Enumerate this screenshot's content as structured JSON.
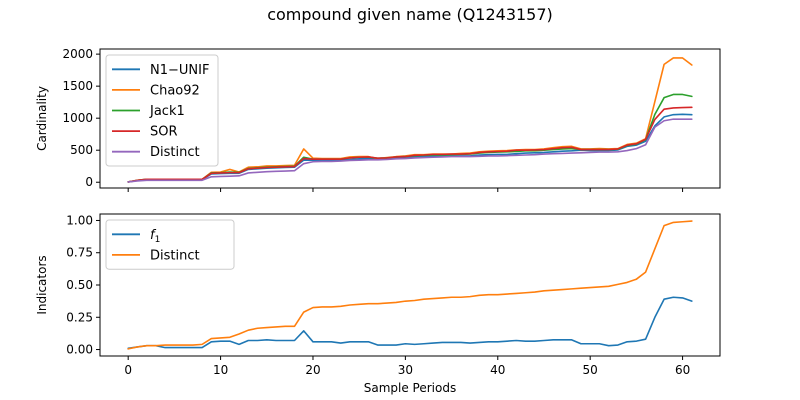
{
  "figure": {
    "title": "compound given name (Q1243157)"
  },
  "chart_data": [
    {
      "type": "line",
      "ylabel": "Cardinality",
      "xlabel": "",
      "xlim": [
        -3.05,
        64.05
      ],
      "ylim": [
        -90,
        2080
      ],
      "xticks": [
        0,
        10,
        20,
        30,
        40,
        50,
        60
      ],
      "xtick_labels_visible": false,
      "yticks": [
        0,
        500,
        1000,
        1500,
        2000
      ],
      "ytick_labels": [
        "0",
        "500",
        "1000",
        "1500",
        "2000"
      ],
      "grid": false,
      "legend_position": "upper-left",
      "x": [
        0,
        1,
        2,
        3,
        4,
        5,
        6,
        7,
        8,
        9,
        10,
        11,
        12,
        13,
        14,
        15,
        16,
        17,
        18,
        19,
        20,
        21,
        22,
        23,
        24,
        25,
        26,
        27,
        28,
        29,
        30,
        31,
        32,
        33,
        34,
        35,
        36,
        37,
        38,
        39,
        40,
        41,
        42,
        43,
        44,
        45,
        46,
        47,
        48,
        49,
        50,
        51,
        52,
        53,
        54,
        55,
        56,
        57,
        58,
        59,
        60,
        61
      ],
      "series": [
        {
          "name": "N1−UNIF",
          "color": "#1f77b4",
          "values": [
            5,
            25,
            40,
            40,
            40,
            40,
            40,
            40,
            40,
            130,
            135,
            140,
            140,
            200,
            210,
            220,
            225,
            230,
            235,
            345,
            345,
            345,
            345,
            345,
            355,
            365,
            365,
            365,
            370,
            380,
            390,
            395,
            405,
            405,
            410,
            410,
            410,
            410,
            425,
            430,
            435,
            435,
            445,
            455,
            460,
            465,
            475,
            485,
            490,
            500,
            495,
            495,
            495,
            505,
            560,
            580,
            640,
            880,
            1020,
            1055,
            1060,
            1055
          ]
        },
        {
          "name": "Chao92",
          "color": "#ff7f0e",
          "values": [
            5,
            30,
            45,
            45,
            45,
            45,
            45,
            45,
            45,
            155,
            160,
            200,
            160,
            235,
            240,
            255,
            255,
            260,
            265,
            520,
            375,
            370,
            370,
            370,
            395,
            400,
            400,
            370,
            385,
            400,
            410,
            430,
            430,
            440,
            440,
            440,
            450,
            455,
            475,
            485,
            490,
            495,
            505,
            510,
            510,
            520,
            540,
            555,
            560,
            520,
            520,
            525,
            520,
            525,
            590,
            610,
            680,
            1260,
            1840,
            1940,
            1940,
            1830
          ]
        },
        {
          "name": "Jack1",
          "color": "#2ca02c",
          "values": [
            5,
            30,
            45,
            45,
            45,
            45,
            45,
            45,
            45,
            145,
            150,
            160,
            155,
            215,
            225,
            235,
            240,
            245,
            250,
            390,
            360,
            360,
            360,
            360,
            380,
            390,
            390,
            375,
            380,
            395,
            400,
            415,
            420,
            425,
            425,
            430,
            435,
            440,
            455,
            465,
            470,
            475,
            480,
            490,
            490,
            500,
            510,
            520,
            525,
            510,
            510,
            510,
            510,
            515,
            575,
            595,
            665,
            1060,
            1320,
            1370,
            1370,
            1340
          ]
        },
        {
          "name": "SOR",
          "color": "#d62728",
          "values": [
            5,
            30,
            45,
            45,
            45,
            45,
            45,
            45,
            45,
            140,
            145,
            150,
            150,
            210,
            220,
            230,
            235,
            240,
            245,
            370,
            360,
            360,
            360,
            360,
            380,
            390,
            395,
            375,
            380,
            395,
            400,
            420,
            425,
            435,
            435,
            440,
            440,
            445,
            465,
            475,
            480,
            485,
            500,
            500,
            505,
            510,
            525,
            540,
            545,
            510,
            510,
            510,
            510,
            520,
            580,
            600,
            670,
            980,
            1140,
            1160,
            1165,
            1170
          ]
        },
        {
          "name": "Distinct",
          "color": "#9467bd",
          "values": [
            5,
            20,
            30,
            30,
            30,
            30,
            30,
            30,
            30,
            85,
            90,
            95,
            100,
            145,
            155,
            165,
            170,
            175,
            180,
            290,
            320,
            325,
            325,
            330,
            340,
            345,
            350,
            350,
            355,
            365,
            370,
            380,
            385,
            390,
            395,
            400,
            400,
            400,
            405,
            410,
            410,
            415,
            420,
            425,
            430,
            440,
            445,
            450,
            455,
            460,
            465,
            470,
            470,
            475,
            495,
            525,
            585,
            860,
            960,
            985,
            985,
            985
          ]
        }
      ]
    },
    {
      "type": "line",
      "ylabel": "Indicators",
      "xlabel": "Sample Periods",
      "xlim": [
        -3.05,
        64.05
      ],
      "ylim": [
        -0.05,
        1.05
      ],
      "xticks": [
        0,
        10,
        20,
        30,
        40,
        50,
        60
      ],
      "xtick_labels": [
        "0",
        "10",
        "20",
        "30",
        "40",
        "50",
        "60"
      ],
      "yticks": [
        0.0,
        0.25,
        0.5,
        0.75,
        1.0
      ],
      "ytick_labels": [
        "0.00",
        "0.25",
        "0.50",
        "0.75",
        "1.00"
      ],
      "grid": false,
      "legend_position": "upper-left",
      "x": [
        0,
        1,
        2,
        3,
        4,
        5,
        6,
        7,
        8,
        9,
        10,
        11,
        12,
        13,
        14,
        15,
        16,
        17,
        18,
        19,
        20,
        21,
        22,
        23,
        24,
        25,
        26,
        27,
        28,
        29,
        30,
        31,
        32,
        33,
        34,
        35,
        36,
        37,
        38,
        39,
        40,
        41,
        42,
        43,
        44,
        45,
        46,
        47,
        48,
        49,
        50,
        51,
        52,
        53,
        54,
        55,
        56,
        57,
        58,
        59,
        60,
        61
      ],
      "series": [
        {
          "name": "f1",
          "name_base": "f",
          "name_sub": "1",
          "color": "#1f77b4",
          "values": [
            0.01,
            0.02,
            0.03,
            0.03,
            0.015,
            0.015,
            0.015,
            0.015,
            0.015,
            0.06,
            0.065,
            0.065,
            0.04,
            0.07,
            0.07,
            0.075,
            0.07,
            0.07,
            0.07,
            0.145,
            0.06,
            0.06,
            0.06,
            0.05,
            0.06,
            0.06,
            0.06,
            0.035,
            0.035,
            0.035,
            0.045,
            0.04,
            0.045,
            0.05,
            0.055,
            0.055,
            0.055,
            0.05,
            0.055,
            0.06,
            0.06,
            0.065,
            0.07,
            0.065,
            0.065,
            0.07,
            0.075,
            0.075,
            0.075,
            0.045,
            0.045,
            0.045,
            0.03,
            0.035,
            0.06,
            0.065,
            0.08,
            0.25,
            0.39,
            0.405,
            0.4,
            0.375
          ]
        },
        {
          "name": "Distinct",
          "color": "#ff7f0e",
          "values": [
            0.005,
            0.02,
            0.03,
            0.03,
            0.035,
            0.035,
            0.035,
            0.035,
            0.04,
            0.085,
            0.09,
            0.095,
            0.12,
            0.15,
            0.165,
            0.17,
            0.175,
            0.18,
            0.18,
            0.29,
            0.325,
            0.33,
            0.33,
            0.335,
            0.345,
            0.35,
            0.355,
            0.355,
            0.36,
            0.365,
            0.375,
            0.38,
            0.39,
            0.395,
            0.4,
            0.405,
            0.405,
            0.41,
            0.42,
            0.425,
            0.425,
            0.43,
            0.435,
            0.44,
            0.445,
            0.455,
            0.46,
            0.465,
            0.47,
            0.475,
            0.48,
            0.485,
            0.49,
            0.505,
            0.52,
            0.545,
            0.6,
            0.78,
            0.96,
            0.985,
            0.99,
            0.995
          ]
        }
      ]
    }
  ]
}
